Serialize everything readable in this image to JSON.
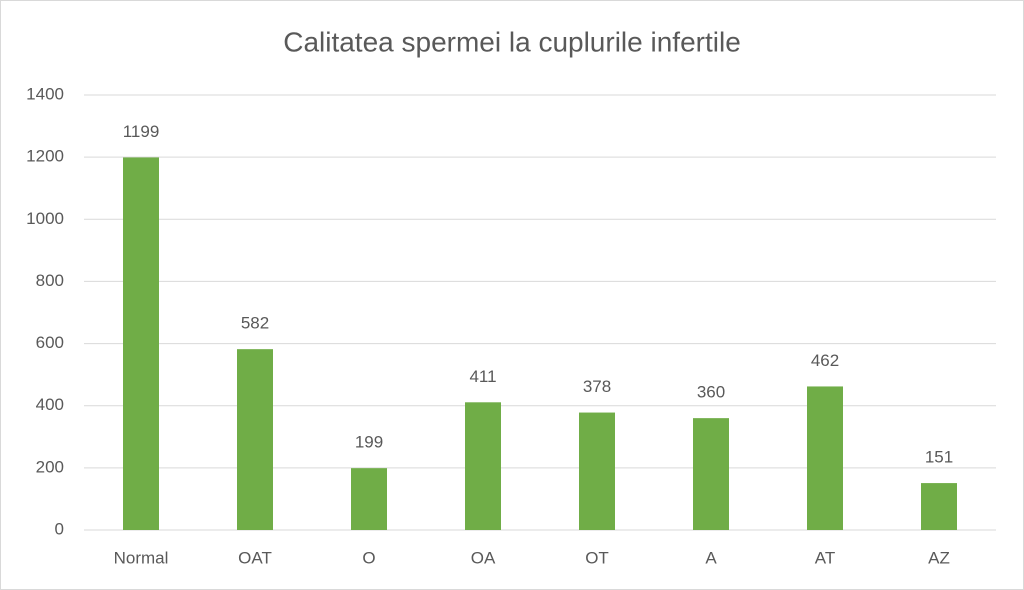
{
  "chart_data": {
    "type": "bar",
    "title": "Calitatea spermei la cuplurile infertile",
    "categories": [
      "Normal",
      "OAT",
      "O",
      "OA",
      "OT",
      "A",
      "AT",
      "AZ"
    ],
    "values": [
      1199,
      582,
      199,
      411,
      378,
      360,
      462,
      151
    ],
    "color": "#70ad47",
    "ylim": [
      0,
      1400
    ],
    "yticks": [
      0,
      200,
      400,
      600,
      800,
      1000,
      1200,
      1400
    ],
    "grid": true
  }
}
